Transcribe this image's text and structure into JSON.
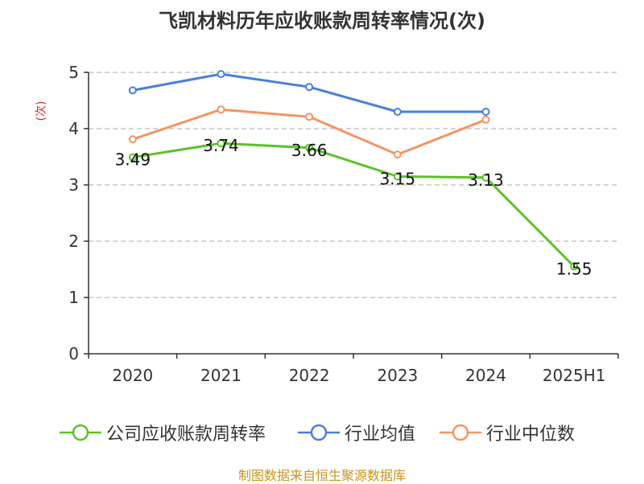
{
  "chart_data": {
    "type": "line",
    "title": "飞凯材料历年应收账款周转率情况(次)",
    "ylabel": "(次)",
    "xlabel": "",
    "categories": [
      "2020",
      "2021",
      "2022",
      "2023",
      "2024",
      "2025H1"
    ],
    "ylim": [
      0,
      5
    ],
    "yticks": [
      0,
      1,
      2,
      3,
      4,
      5
    ],
    "grid": true,
    "legend_position": "bottom",
    "series": [
      {
        "name": "公司应收账款周转率",
        "color": "#5cc22a",
        "show_labels": true,
        "values": [
          3.49,
          3.74,
          3.66,
          3.15,
          3.13,
          1.55
        ]
      },
      {
        "name": "行业均值",
        "color": "#4a7fd9",
        "show_labels": false,
        "values": [
          4.68,
          4.97,
          4.74,
          4.3,
          4.3,
          null
        ]
      },
      {
        "name": "行业中位数",
        "color": "#f59464",
        "show_labels": false,
        "values": [
          3.81,
          4.34,
          4.21,
          3.54,
          4.16,
          null
        ]
      }
    ]
  },
  "source": "制图数据来自恒生聚源数据库"
}
